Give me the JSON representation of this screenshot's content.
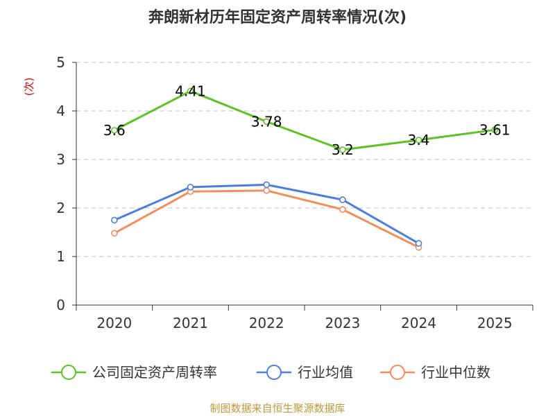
{
  "title": "奔朗新材历年固定资产周转率情况(次)",
  "source": "制图数据来自恒生聚源数据库",
  "chart_data": {
    "type": "line",
    "title": "奔朗新材历年固定资产周转率情况(次)",
    "ylabel": "(次)",
    "xlabel": "",
    "ylim": [
      0,
      5
    ],
    "yticks": [
      0,
      1,
      2,
      3,
      4,
      5
    ],
    "grid": true,
    "legend_position": "bottom",
    "categories": [
      "2020",
      "2021",
      "2022",
      "2023",
      "2024",
      "2025"
    ],
    "series": [
      {
        "name": "公司固定资产周转率",
        "color": "#5cc323",
        "values": [
          3.6,
          4.41,
          3.78,
          3.2,
          3.4,
          3.61
        ],
        "labels": [
          "3.6",
          "4.41",
          "3.78",
          "3.2",
          "3.4",
          "3.61"
        ],
        "show_labels": true
      },
      {
        "name": "行业均值",
        "color": "#4a7fdf",
        "values": [
          1.75,
          2.43,
          2.48,
          2.17,
          1.27,
          null
        ],
        "show_labels": false
      },
      {
        "name": "行业中位数",
        "color": "#f58c5a",
        "values": [
          1.48,
          2.34,
          2.36,
          1.97,
          1.19,
          null
        ],
        "show_labels": false
      }
    ]
  }
}
